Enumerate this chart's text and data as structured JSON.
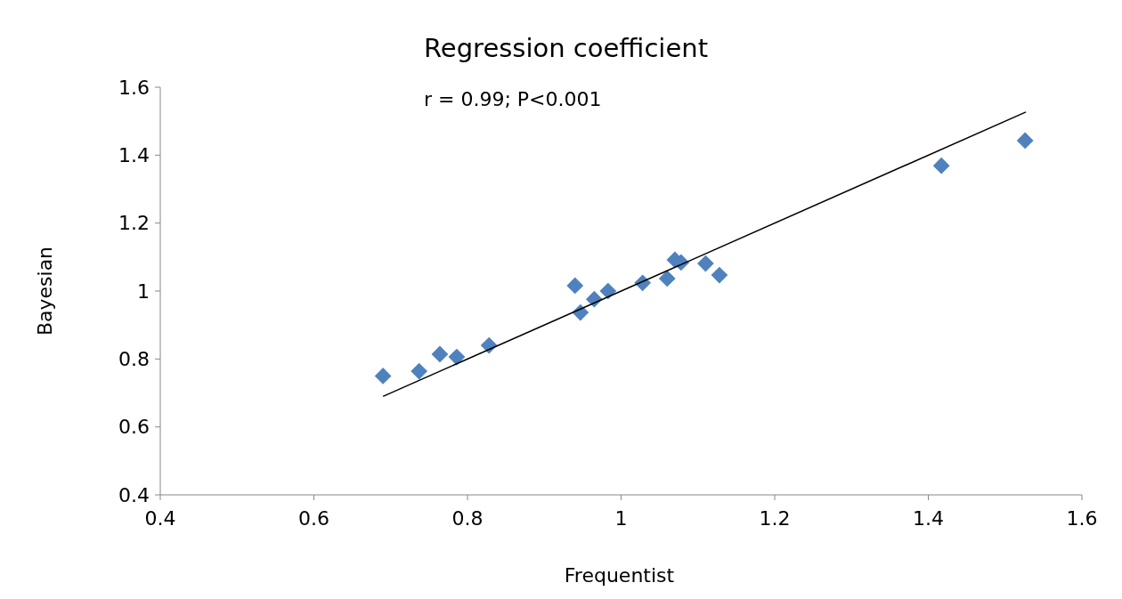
{
  "chart_data": {
    "type": "scatter",
    "title": "Regression coefficient",
    "xlabel": "Frequentist",
    "ylabel": "Bayesian",
    "annotations": [
      "r = 0.99; P<0.001"
    ],
    "xlim": [
      0.4,
      1.6
    ],
    "xticks": [
      0.4,
      0.6,
      0.8,
      1,
      1.2,
      1.4,
      1.6
    ],
    "ylim": [
      0.4,
      1.6
    ],
    "yticks": [
      0.4,
      0.6,
      0.8,
      1,
      1.2,
      1.4,
      1.6
    ],
    "series": [
      {
        "marker": "diamond",
        "color": "#4f81bd",
        "x": [
          0.69,
          0.737,
          0.764,
          0.786,
          0.828,
          0.94,
          0.947,
          0.965,
          0.983,
          1.028,
          1.06,
          1.07,
          1.078,
          1.11,
          1.128,
          1.417,
          1.526
        ],
        "values": [
          0.75,
          0.764,
          0.814,
          0.806,
          0.84,
          1.016,
          0.937,
          0.976,
          1.0,
          1.024,
          1.037,
          1.092,
          1.084,
          1.081,
          1.047,
          1.369,
          1.443
        ]
      },
      {
        "type": "line",
        "color": "#000000",
        "x": [
          0.69,
          1.527
        ],
        "values": [
          0.69,
          1.527
        ]
      }
    ]
  }
}
